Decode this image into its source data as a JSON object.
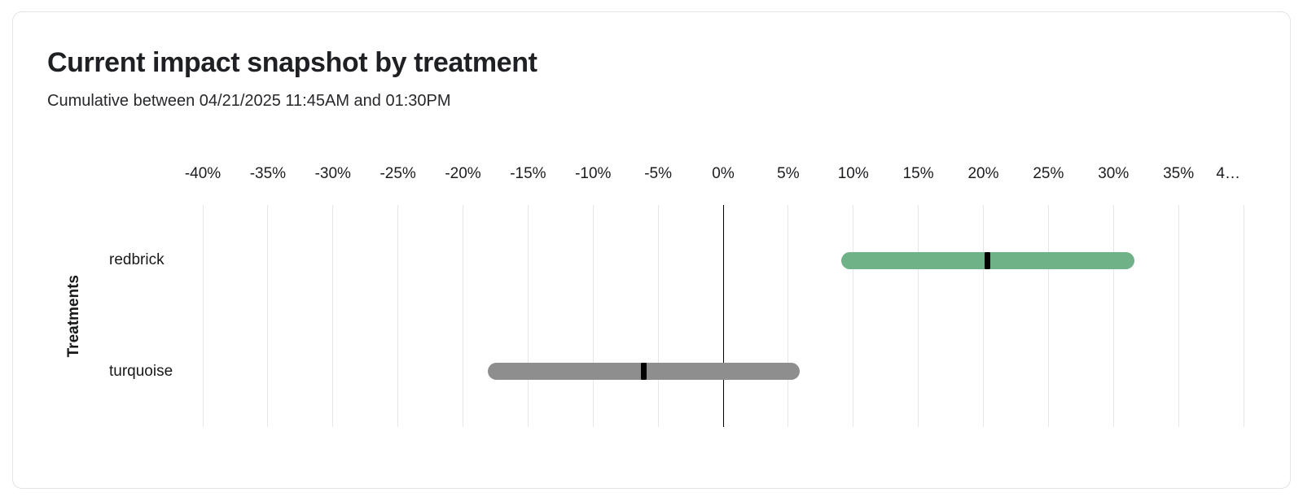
{
  "card": {
    "title": "Current impact snapshot by treatment",
    "subtitle": "Cumulative between 04/21/2025 11:45AM and 01:30PM"
  },
  "chart_data": {
    "type": "range_bar",
    "orientation": "horizontal",
    "title": "Current impact snapshot by treatment",
    "subtitle": "Cumulative between 04/21/2025 11:45AM and 01:30PM",
    "xlabel": "",
    "ylabel": "Treatments",
    "x_unit": "%",
    "xlim": [
      -40,
      40
    ],
    "x_tick_step": 5,
    "x_tick_labels": [
      "-40%",
      "-35%",
      "-30%",
      "-25%",
      "-20%",
      "-15%",
      "-10%",
      "-5%",
      "0%",
      "5%",
      "10%",
      "15%",
      "20%",
      "25%",
      "30%",
      "35%",
      "4…"
    ],
    "grid": true,
    "zero_line": true,
    "legend": false,
    "categories": [
      "redbrick",
      "turquoise"
    ],
    "series": [
      {
        "name": "redbrick",
        "low": 9.1,
        "mid": 20.3,
        "high": 31.6,
        "color": "#6FB287"
      },
      {
        "name": "turquoise",
        "low": -18.1,
        "mid": -6.1,
        "high": 5.9,
        "color": "#8E8E8E"
      }
    ],
    "marker_color": "#000000"
  },
  "colors": {
    "card_border": "#E3E3E3",
    "gridline": "#E7E7E7",
    "zero_line": "#000000",
    "title_text": "#1E2023",
    "body_text": "#17181A"
  }
}
